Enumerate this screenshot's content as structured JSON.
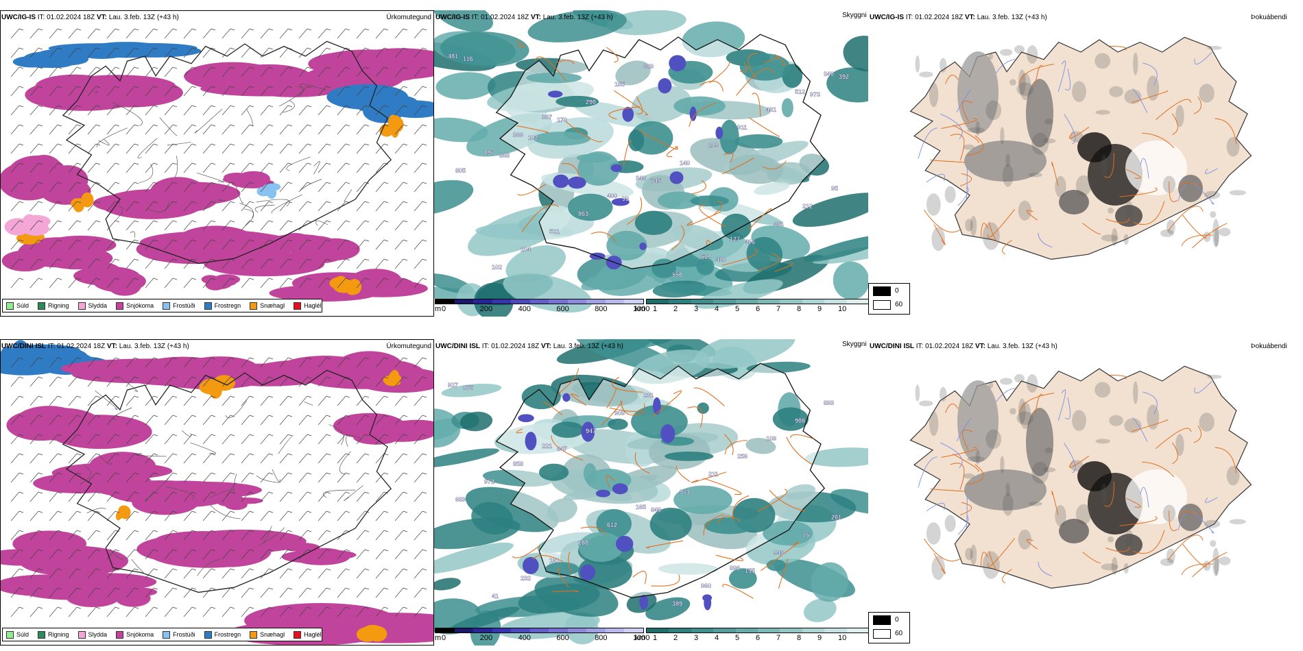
{
  "rows": [
    {
      "model": "UWC/IG-IS",
      "run_label": "IT:",
      "run_time": "01.02.2024 18Z",
      "valid_label": "VT:",
      "valid_time": "Lau. 3.feb. 13Z",
      "lead": "(+43 h)",
      "visibility_labels": [
        "481",
        "337",
        "348",
        "127",
        "340",
        "366",
        "400",
        "519",
        "512",
        "897",
        "863",
        "550",
        "481",
        "805",
        "521",
        "689",
        "911",
        "95",
        "104",
        "185",
        "109",
        "212",
        "102",
        "290",
        "140",
        "481",
        "116",
        "170",
        "745",
        "416",
        "392",
        "102",
        "99",
        "420",
        "973",
        "868"
      ]
    },
    {
      "model": "UWC/DINI ISL",
      "run_label": "IT:",
      "run_time": "01.02.2024 18Z",
      "valid_label": "VT:",
      "valid_time": "Lau. 3.feb. 13Z",
      "lead": "(+43 h)",
      "visibility_labels": [
        "927",
        "221",
        "165",
        "896",
        "893",
        "858",
        "612",
        "960",
        "908",
        "972",
        "180",
        "389",
        "109",
        "689",
        "161",
        "231",
        "256",
        "201",
        "232",
        "909",
        "211",
        "75",
        "41",
        "947",
        "973",
        "943",
        "875",
        "847",
        "846",
        "155"
      ]
    }
  ],
  "panel_titles": {
    "precip": "Úrkomutegund",
    "visibility": "Skyggni",
    "fog": "Þokuábendi"
  },
  "precip_legend": [
    {
      "label": "Súld",
      "color": "#90ee90"
    },
    {
      "label": "Rigning",
      "color": "#2e8b57"
    },
    {
      "label": "Slydda",
      "color": "#f4a6d7"
    },
    {
      "label": "Snjókoma",
      "color": "#c0449b"
    },
    {
      "label": "Frostúði",
      "color": "#87c2f0"
    },
    {
      "label": "Frostregn",
      "color": "#2f7bc4"
    },
    {
      "label": "Snæhagl",
      "color": "#f39a11"
    },
    {
      "label": "Haglél",
      "color": "#e8111b"
    }
  ],
  "ceiling_scale": {
    "unit": "m",
    "ticks": [
      "0",
      "200",
      "400",
      "600",
      "800",
      "1000"
    ],
    "colors": [
      "#000000",
      "#18186e",
      "#25259a",
      "#3535b4",
      "#4949c0",
      "#6060cc",
      "#7474d6",
      "#8a8ade",
      "#a0a0e6",
      "#b8b8ee",
      "#d0d0f4"
    ]
  },
  "visibility_scale": {
    "unit": "km",
    "ticks": [
      "1",
      "2",
      "3",
      "4",
      "5",
      "6",
      "7",
      "8",
      "9",
      "10"
    ],
    "colors": [
      "#1f6e6e",
      "#2d8080",
      "#3d8f8f",
      "#4f9d9d",
      "#64abab",
      "#7bb9b9",
      "#93c7c7",
      "#acd5d5",
      "#c5e3e3",
      "#deefef"
    ]
  },
  "fog_scale": {
    "labels": [
      "0",
      "60"
    ],
    "colors": [
      "#000000",
      "#ffffff"
    ]
  },
  "colors": {
    "snow": "#c0449b",
    "frostregn": "#2f7bc4",
    "sleet": "#f4a6d7",
    "snaehagl": "#f39a11",
    "vis_teal": "#2e8b8b",
    "ceiling_blue": "#5050c0",
    "roads": "#e07020",
    "land_fog": "#f2e0d0",
    "rivers": "#7b8ee8"
  }
}
